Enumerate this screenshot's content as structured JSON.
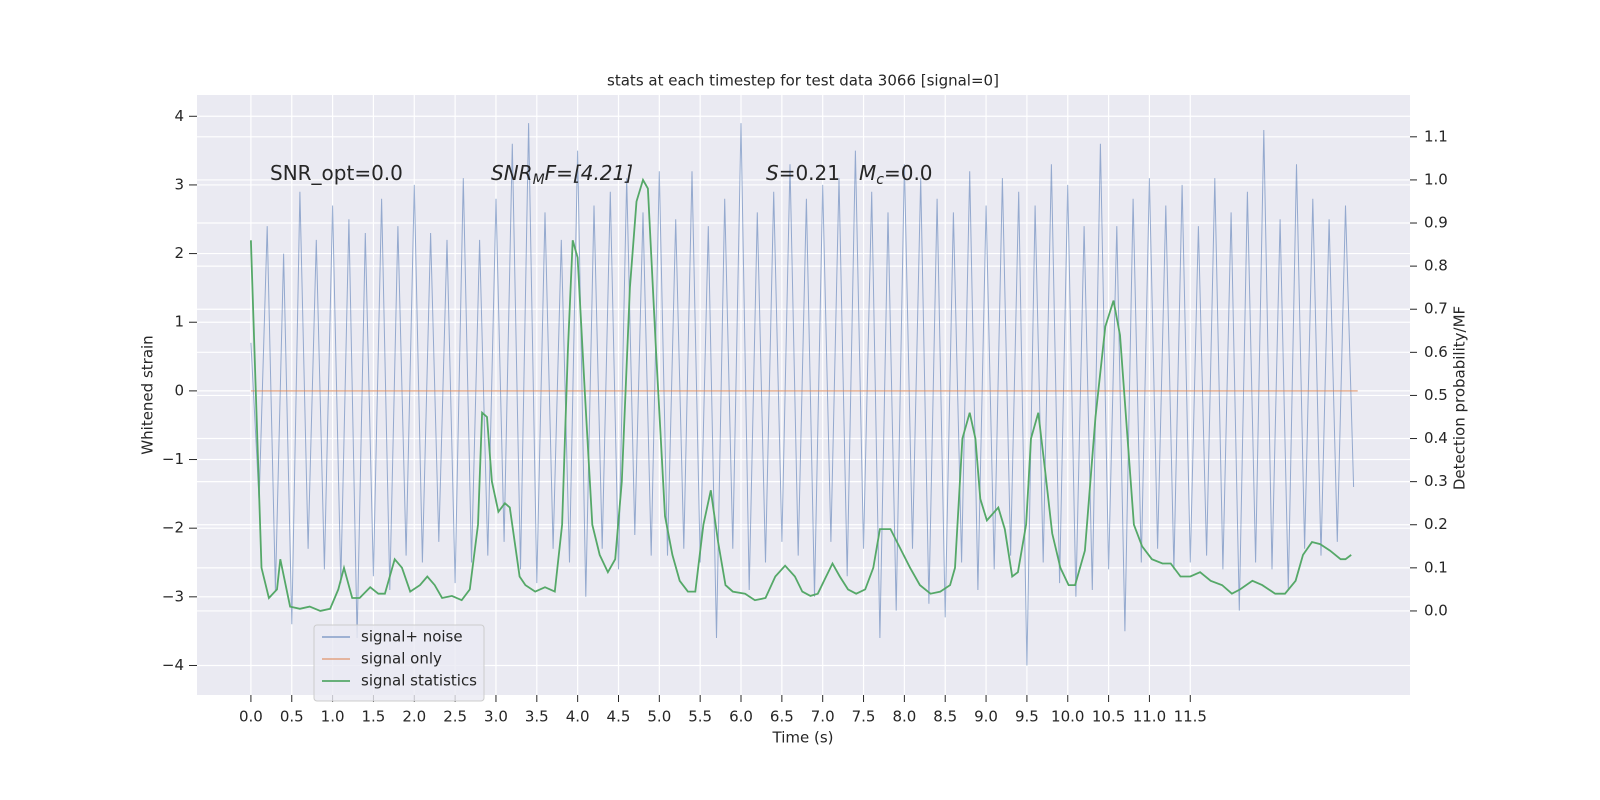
{
  "chart_data": {
    "type": "line",
    "title": "stats at each timestep for test data 3066 [signal=0]",
    "xlabel": "Time (s)",
    "ylabel": "Whitened strain",
    "y2label": "Detection probability/MF",
    "annotations": [
      [
        "SNR_opt=0.0"
      ],
      [
        "SNR",
        "M",
        "F=[4.21]"
      ],
      [
        "S",
        "=0.21"
      ],
      [
        "M",
        "c",
        "=0.0"
      ]
    ],
    "xlim": [
      -0.66,
      14.19
    ],
    "ylim": [
      -4.43,
      4.31
    ],
    "y2lim": [
      -0.195,
      1.197
    ],
    "xticks": [
      {
        "value": 0,
        "label": "0.0"
      },
      {
        "value": 0.5,
        "label": "0.5"
      },
      {
        "value": 1,
        "label": "1.0"
      },
      {
        "value": 1.5,
        "label": "1.5"
      },
      {
        "value": 2,
        "label": "2.0"
      },
      {
        "value": 2.5,
        "label": "2.5"
      },
      {
        "value": 3,
        "label": "3.0"
      },
      {
        "value": 3.5,
        "label": "3.5"
      },
      {
        "value": 4,
        "label": "4.0"
      },
      {
        "value": 4.5,
        "label": "4.5"
      },
      {
        "value": 5,
        "label": "5.0"
      },
      {
        "value": 5.5,
        "label": "5.5"
      },
      {
        "value": 6,
        "label": "6.0"
      },
      {
        "value": 6.5,
        "label": "6.5"
      },
      {
        "value": 7,
        "label": "7.0"
      },
      {
        "value": 7.5,
        "label": "7.5"
      },
      {
        "value": 8,
        "label": "8.0"
      },
      {
        "value": 8.5,
        "label": "8.5"
      },
      {
        "value": 9,
        "label": "9.0"
      },
      {
        "value": 9.5,
        "label": "9.5"
      },
      {
        "value": 10,
        "label": "10.0"
      },
      {
        "value": 10.5,
        "label": "10.5"
      },
      {
        "value": 11,
        "label": "11.0"
      },
      {
        "value": 11.5,
        "label": "11.5"
      }
    ],
    "yticks": [
      {
        "value": -4,
        "label": "−4"
      },
      {
        "value": -3,
        "label": "−3"
      },
      {
        "value": -2,
        "label": "−2"
      },
      {
        "value": -1,
        "label": "−1"
      },
      0,
      1,
      2,
      3,
      4
    ],
    "y2ticks": [
      {
        "value": 0,
        "label": "0.0"
      },
      {
        "value": 0.1,
        "label": "0.1"
      },
      {
        "value": 0.2,
        "label": "0.2"
      },
      {
        "value": 0.3,
        "label": "0.3"
      },
      {
        "value": 0.4,
        "label": "0.4"
      },
      {
        "value": 0.5,
        "label": "0.5"
      },
      {
        "value": 0.6,
        "label": "0.6"
      },
      {
        "value": 0.7,
        "label": "0.7"
      },
      {
        "value": 0.8,
        "label": "0.8"
      },
      {
        "value": 0.9,
        "label": "0.9"
      },
      {
        "value": 1,
        "label": "1.0"
      },
      {
        "value": 1.1,
        "label": "1.1"
      }
    ],
    "grid": true,
    "legend": "lower left",
    "series": [
      {
        "name": "signal+ noise",
        "color": "#4c72b0",
        "axis": "y",
        "x": [
          0,
          0.1,
          0.2,
          0.3,
          0.4,
          0.5,
          0.6,
          0.7,
          0.8,
          0.9,
          1,
          1.1,
          1.2,
          1.3,
          1.4,
          1.5,
          1.6,
          1.7,
          1.8,
          1.9,
          2,
          2.1,
          2.2,
          2.3,
          2.4,
          2.5,
          2.6,
          2.7,
          2.8,
          2.9,
          3,
          3.1,
          3.2,
          3.3,
          3.4,
          3.5,
          3.6,
          3.7,
          3.8,
          3.9,
          4,
          4.1,
          4.2,
          4.3,
          4.4,
          4.5,
          4.6,
          4.7,
          4.8,
          4.9,
          5,
          5.1,
          5.2,
          5.3,
          5.4,
          5.5,
          5.6,
          5.7,
          5.8,
          5.9,
          6,
          6.1,
          6.2,
          6.3,
          6.4,
          6.5,
          6.6,
          6.7,
          6.8,
          6.9,
          7,
          7.1,
          7.2,
          7.3,
          7.4,
          7.5,
          7.6,
          7.7,
          7.8,
          7.9,
          8,
          8.1,
          8.2,
          8.3,
          8.4,
          8.5,
          8.6,
          8.7,
          8.8,
          8.9,
          9,
          9.1,
          9.2,
          9.3,
          9.4,
          9.5,
          9.6,
          9.7,
          9.8,
          9.9,
          10,
          10.1,
          10.2,
          10.3,
          10.4,
          10.5,
          10.6,
          10.7,
          10.8,
          10.9,
          11,
          11.1,
          11.2,
          11.3,
          11.4,
          11.5,
          11.6,
          11.7,
          11.8,
          11.9,
          12,
          12.1,
          12.2,
          12.3,
          12.4,
          12.5,
          12.6,
          12.7,
          12.8,
          12.9,
          13,
          13.1,
          13.2,
          13.3,
          13.4,
          13.5
        ],
        "values": [
          0.7,
          -1.6,
          2.4,
          -2.9,
          2.0,
          -3.4,
          2.9,
          -2.3,
          2.2,
          -2.6,
          2.7,
          -2.8,
          2.5,
          -3.6,
          2.3,
          -2.7,
          2.8,
          -2.9,
          2.4,
          -2.4,
          3.0,
          -2.5,
          2.3,
          -2.2,
          2.2,
          -2.8,
          3.1,
          -2.5,
          2.2,
          -2.4,
          2.8,
          -2.2,
          3.6,
          -2.6,
          3.9,
          -2.8,
          2.6,
          -2.3,
          2.2,
          -2.5,
          3.5,
          -3.0,
          2.7,
          -2.3,
          2.9,
          -2.6,
          3.1,
          -2.1,
          2.6,
          -2.4,
          3.2,
          -2.4,
          2.5,
          -2.3,
          3.2,
          -2.5,
          2.4,
          -3.6,
          2.8,
          -2.3,
          3.9,
          -2.9,
          2.6,
          -2.5,
          2.9,
          -2.2,
          3.3,
          -2.4,
          2.8,
          -3.0,
          3.0,
          -2.2,
          3.1,
          -2.7,
          3.5,
          -2.3,
          2.9,
          -3.6,
          2.6,
          -3.2,
          3.3,
          -2.3,
          3.1,
          -3.1,
          2.8,
          -3.3,
          2.6,
          -2.5,
          3.2,
          -2.9,
          2.7,
          -2.6,
          3.1,
          -2.4,
          2.9,
          -4.0,
          2.7,
          -2.5,
          3.3,
          -2.8,
          3.0,
          -3.0,
          2.4,
          -2.9,
          3.6,
          -2.6,
          2.4,
          -3.5,
          2.8,
          -2.5,
          3.1,
          -2.3,
          2.7,
          -2.6,
          3.0,
          -2.5,
          2.4,
          -2.4,
          3.1,
          -2.6,
          2.6,
          -3.2,
          2.9,
          -2.5,
          3.8,
          -2.6,
          2.5,
          -2.9,
          3.3,
          -2.3,
          2.8,
          -2.4,
          2.5,
          -2.2,
          2.7,
          -1.4
        ]
      },
      {
        "name": "signal only",
        "color": "#dd8452",
        "axis": "y",
        "x": [
          0,
          13.55
        ],
        "values": [
          0,
          0
        ]
      },
      {
        "name": "signal statistics",
        "color": "#55a868",
        "axis": "y2",
        "x": [
          0,
          0.13,
          0.22,
          0.32,
          0.36,
          0.48,
          0.6,
          0.72,
          0.85,
          0.97,
          1.07,
          1.14,
          1.24,
          1.33,
          1.46,
          1.56,
          1.64,
          1.76,
          1.85,
          1.95,
          2.07,
          2.16,
          2.25,
          2.34,
          2.46,
          2.58,
          2.68,
          2.78,
          2.83,
          2.89,
          2.95,
          3.03,
          3.11,
          3.17,
          3.29,
          3.36,
          3.48,
          3.6,
          3.72,
          3.81,
          3.88,
          3.94,
          4,
          4.09,
          4.18,
          4.27,
          4.37,
          4.46,
          4.54,
          4.64,
          4.72,
          4.8,
          4.86,
          4.96,
          5.07,
          5.16,
          5.25,
          5.35,
          5.44,
          5.54,
          5.63,
          5.72,
          5.81,
          5.9,
          6.05,
          6.17,
          6.3,
          6.42,
          6.54,
          6.66,
          6.75,
          6.85,
          6.94,
          7.03,
          7.12,
          7.21,
          7.31,
          7.41,
          7.52,
          7.62,
          7.7,
          7.83,
          7.91,
          8.07,
          8.19,
          8.32,
          8.44,
          8.56,
          8.62,
          8.71,
          8.8,
          8.87,
          8.93,
          9.01,
          9.15,
          9.23,
          9.32,
          9.39,
          9.49,
          9.55,
          9.64,
          9.72,
          9.81,
          9.91,
          10.01,
          10.09,
          10.21,
          10.34,
          10.46,
          10.56,
          10.64,
          10.74,
          10.81,
          10.91,
          11.03,
          11.16,
          11.26,
          11.38,
          11.5,
          11.62,
          11.75,
          11.89,
          12.01,
          12.11,
          12.26,
          12.38,
          12.54,
          12.66,
          12.79,
          12.88,
          12.99,
          13.09,
          13.21,
          13.34,
          13.4,
          13.47
        ],
        "values": [
          0.86,
          0.1,
          0.03,
          0.05,
          0.12,
          0.01,
          0.005,
          0.01,
          0.0,
          0.005,
          0.05,
          0.1,
          0.03,
          0.03,
          0.055,
          0.04,
          0.04,
          0.12,
          0.1,
          0.045,
          0.06,
          0.08,
          0.06,
          0.03,
          0.035,
          0.025,
          0.05,
          0.2,
          0.46,
          0.45,
          0.3,
          0.23,
          0.25,
          0.24,
          0.08,
          0.06,
          0.045,
          0.055,
          0.045,
          0.2,
          0.6,
          0.86,
          0.82,
          0.5,
          0.2,
          0.13,
          0.09,
          0.12,
          0.3,
          0.75,
          0.95,
          1.0,
          0.98,
          0.6,
          0.22,
          0.13,
          0.07,
          0.045,
          0.045,
          0.2,
          0.28,
          0.16,
          0.06,
          0.045,
          0.04,
          0.025,
          0.03,
          0.08,
          0.105,
          0.08,
          0.045,
          0.035,
          0.04,
          0.075,
          0.11,
          0.08,
          0.05,
          0.04,
          0.05,
          0.1,
          0.19,
          0.19,
          0.16,
          0.1,
          0.06,
          0.04,
          0.045,
          0.06,
          0.1,
          0.4,
          0.46,
          0.4,
          0.26,
          0.21,
          0.24,
          0.19,
          0.08,
          0.09,
          0.2,
          0.4,
          0.46,
          0.33,
          0.18,
          0.1,
          0.06,
          0.06,
          0.14,
          0.45,
          0.66,
          0.72,
          0.64,
          0.38,
          0.2,
          0.15,
          0.12,
          0.11,
          0.11,
          0.08,
          0.08,
          0.09,
          0.07,
          0.06,
          0.04,
          0.05,
          0.07,
          0.06,
          0.04,
          0.04,
          0.07,
          0.13,
          0.16,
          0.155,
          0.14,
          0.12,
          0.12,
          0.13
        ]
      }
    ]
  }
}
